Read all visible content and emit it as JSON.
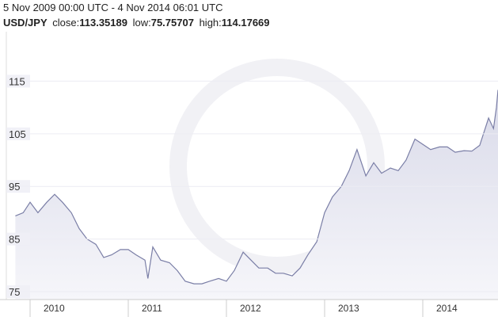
{
  "chart_data": {
    "type": "area",
    "title": "5 Nov 2009 00:00 UTC - 4 Nov 2014 06:01 UTC",
    "pair": "USD/JPY",
    "close_label": "close:",
    "close": 113.35189,
    "low_label": "low:",
    "low": 75.75707,
    "high_label": "high:",
    "high": 114.17669,
    "color": "#7a7ea6",
    "fill": "#e6e7f1",
    "x": [
      2009.85,
      2009.93,
      2010.0,
      2010.08,
      2010.17,
      2010.25,
      2010.33,
      2010.42,
      2010.5,
      2010.58,
      2010.67,
      2010.75,
      2010.83,
      2010.92,
      2011.0,
      2011.08,
      2011.17,
      2011.2,
      2011.25,
      2011.33,
      2011.42,
      2011.5,
      2011.58,
      2011.67,
      2011.75,
      2011.83,
      2011.92,
      2012.0,
      2012.08,
      2012.17,
      2012.25,
      2012.33,
      2012.42,
      2012.5,
      2012.58,
      2012.67,
      2012.75,
      2012.83,
      2012.92,
      2013.0,
      2013.08,
      2013.17,
      2013.25,
      2013.33,
      2013.42,
      2013.5,
      2013.58,
      2013.67,
      2013.75,
      2013.83,
      2013.92,
      2014.0,
      2014.08,
      2014.17,
      2014.25,
      2014.33,
      2014.42,
      2014.5,
      2014.58,
      2014.67,
      2014.72,
      2014.75,
      2014.766
    ],
    "values": [
      89.4,
      90,
      92,
      90,
      92,
      93.5,
      92,
      90,
      87,
      85,
      84,
      81.5,
      82,
      83,
      83,
      82,
      81,
      77.5,
      83.5,
      81,
      80.5,
      79,
      77,
      76.5,
      76.5,
      77,
      77.5,
      77,
      79,
      82.5,
      81,
      79.5,
      79.5,
      78.5,
      78.5,
      78,
      79.5,
      82,
      84.5,
      90,
      93,
      95,
      98,
      102,
      97,
      99.5,
      97.5,
      98.5,
      98,
      100,
      104,
      103,
      102,
      102.5,
      102.5,
      101.5,
      101.8,
      101.7,
      102.8,
      108,
      106,
      110,
      113.35
    ],
    "xlim": [
      2009.758,
      2014.766
    ],
    "xticks": [
      2010,
      2011,
      2012,
      2013,
      2014
    ],
    "ylim": [
      73.5,
      124.4
    ],
    "yticks": [
      75,
      85,
      95,
      105,
      115
    ],
    "grid": true
  }
}
